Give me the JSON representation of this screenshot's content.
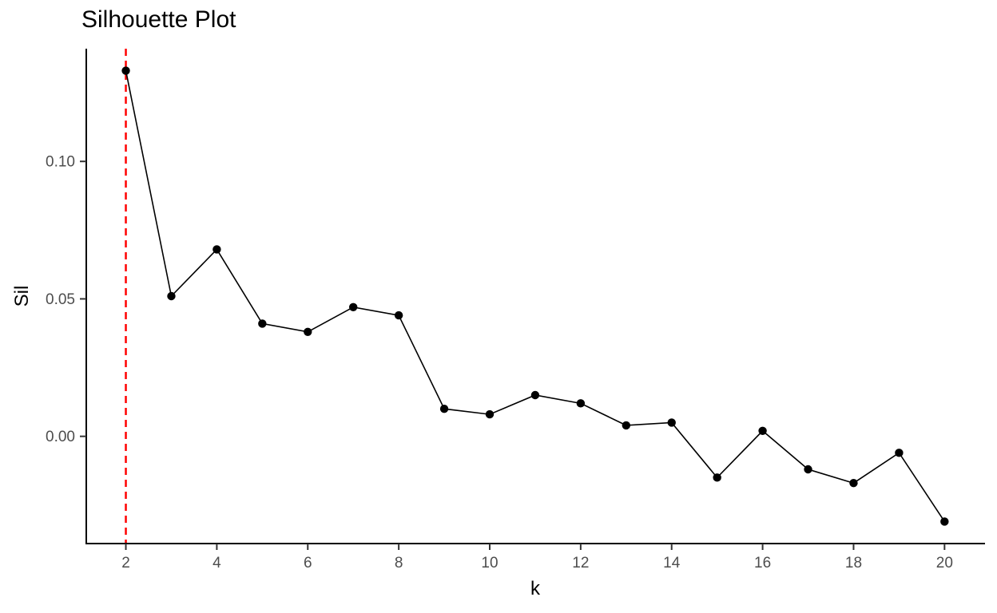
{
  "page": {
    "background": "#ffffff"
  },
  "chart_data": {
    "type": "line",
    "title": "Silhouette Plot",
    "xlabel": "k",
    "ylabel": "Sil",
    "x": [
      2,
      3,
      4,
      5,
      6,
      7,
      8,
      9,
      10,
      11,
      12,
      13,
      14,
      15,
      16,
      17,
      18,
      19,
      20
    ],
    "y": [
      0.133,
      0.051,
      0.068,
      0.041,
      0.038,
      0.047,
      0.044,
      0.01,
      0.008,
      0.015,
      0.012,
      0.004,
      0.005,
      -0.015,
      0.002,
      -0.012,
      -0.017,
      -0.006,
      -0.031
    ],
    "xlim": [
      1.13,
      20.89
    ],
    "ylim": [
      -0.039,
      0.141
    ],
    "x_ticks": [
      {
        "value": 2,
        "label": "2"
      },
      {
        "value": 4,
        "label": "4"
      },
      {
        "value": 6,
        "label": "6"
      },
      {
        "value": 8,
        "label": "8"
      },
      {
        "value": 10,
        "label": "10"
      },
      {
        "value": 12,
        "label": "12"
      },
      {
        "value": 14,
        "label": "14"
      },
      {
        "value": 16,
        "label": "16"
      },
      {
        "value": 18,
        "label": "18"
      },
      {
        "value": 20,
        "label": "20"
      }
    ],
    "y_ticks": [
      {
        "value": 0.0,
        "label": "0.00"
      },
      {
        "value": 0.05,
        "label": "0.05"
      },
      {
        "value": 0.1,
        "label": "0.10"
      }
    ],
    "grid": false,
    "legend": "none",
    "line_color": "#000000",
    "point_color": "#000000",
    "axis_color": "#000000",
    "tick_color": "#333333",
    "tick_label_color": "#4d4d4d",
    "reference_line": {
      "orientation": "vertical",
      "x": 2,
      "color": "#ff0000",
      "style": "dashed"
    }
  }
}
